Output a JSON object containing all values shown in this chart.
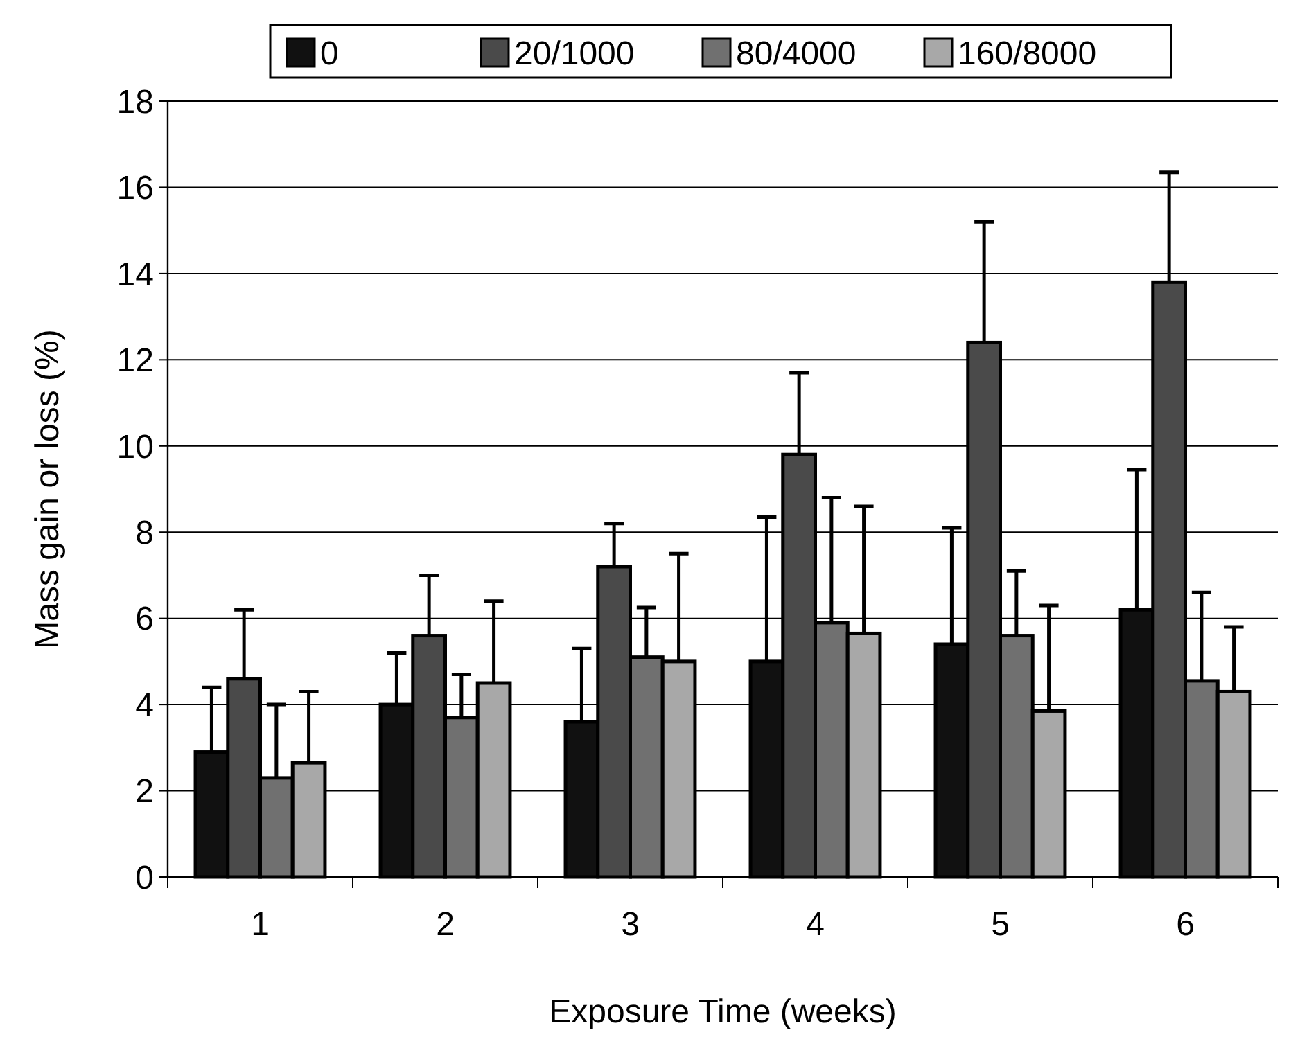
{
  "chart_data": {
    "type": "bar",
    "xlabel": "Exposure Time (weeks)",
    "ylabel": "Mass gain or loss (%)",
    "categories": [
      "1",
      "2",
      "3",
      "4",
      "5",
      "6"
    ],
    "series": [
      {
        "name": "0",
        "color": "#111111",
        "values": [
          2.9,
          4.0,
          3.6,
          5.0,
          5.4,
          6.2
        ],
        "errors": [
          [
            2.9,
            4.4
          ],
          [
            4.0,
            5.2
          ],
          [
            3.6,
            5.3
          ],
          [
            5.0,
            8.35
          ],
          [
            5.4,
            8.1
          ],
          [
            6.2,
            9.45
          ]
        ]
      },
      {
        "name": "20/1000",
        "color": "#4a4a4a",
        "values": [
          4.6,
          5.6,
          7.2,
          9.8,
          12.4,
          13.8
        ],
        "errors": [
          [
            4.6,
            6.2
          ],
          [
            5.6,
            7.0
          ],
          [
            7.2,
            8.2
          ],
          [
            9.8,
            11.7
          ],
          [
            12.4,
            15.2
          ],
          [
            13.8,
            16.35
          ]
        ]
      },
      {
        "name": "80/4000",
        "color": "#707070",
        "values": [
          2.3,
          3.7,
          5.1,
          5.9,
          5.6,
          4.55
        ],
        "errors": [
          [
            2.3,
            4.0
          ],
          [
            3.7,
            4.7
          ],
          [
            5.1,
            6.25
          ],
          [
            5.9,
            8.8
          ],
          [
            5.6,
            7.1
          ],
          [
            4.55,
            6.6
          ]
        ]
      },
      {
        "name": "160/8000",
        "color": "#a8a8a8",
        "values": [
          2.65,
          4.5,
          5.0,
          5.65,
          3.85,
          4.3
        ],
        "errors": [
          [
            2.65,
            4.3
          ],
          [
            4.5,
            6.4
          ],
          [
            5.0,
            7.5
          ],
          [
            5.65,
            8.6
          ],
          [
            3.85,
            6.3
          ],
          [
            4.3,
            5.8
          ]
        ]
      }
    ],
    "ylim": [
      0,
      18
    ],
    "yticks": [
      0,
      2,
      4,
      6,
      8,
      10,
      12,
      14,
      16,
      18
    ],
    "grid": "y",
    "legend": "top"
  }
}
